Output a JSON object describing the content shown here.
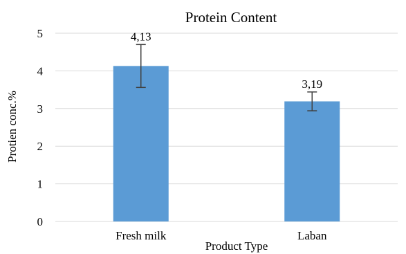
{
  "chart_data": {
    "type": "bar",
    "title": "Protein Content",
    "xlabel": "Product Type",
    "ylabel": "Protien conc.%",
    "categories": [
      "Fresh milk",
      "Laban"
    ],
    "series": [
      {
        "values": [
          4.13,
          3.19
        ],
        "data_labels": [
          "4,13",
          "3,19"
        ],
        "error_plus": [
          0.57,
          0.25
        ],
        "error_minus": [
          0.57,
          0.25
        ],
        "color": "#5b9bd5"
      }
    ],
    "ylim": [
      0,
      5
    ],
    "yticks": [
      "0",
      "1",
      "2",
      "3",
      "4",
      "5"
    ],
    "grid": true,
    "legend": "none"
  }
}
